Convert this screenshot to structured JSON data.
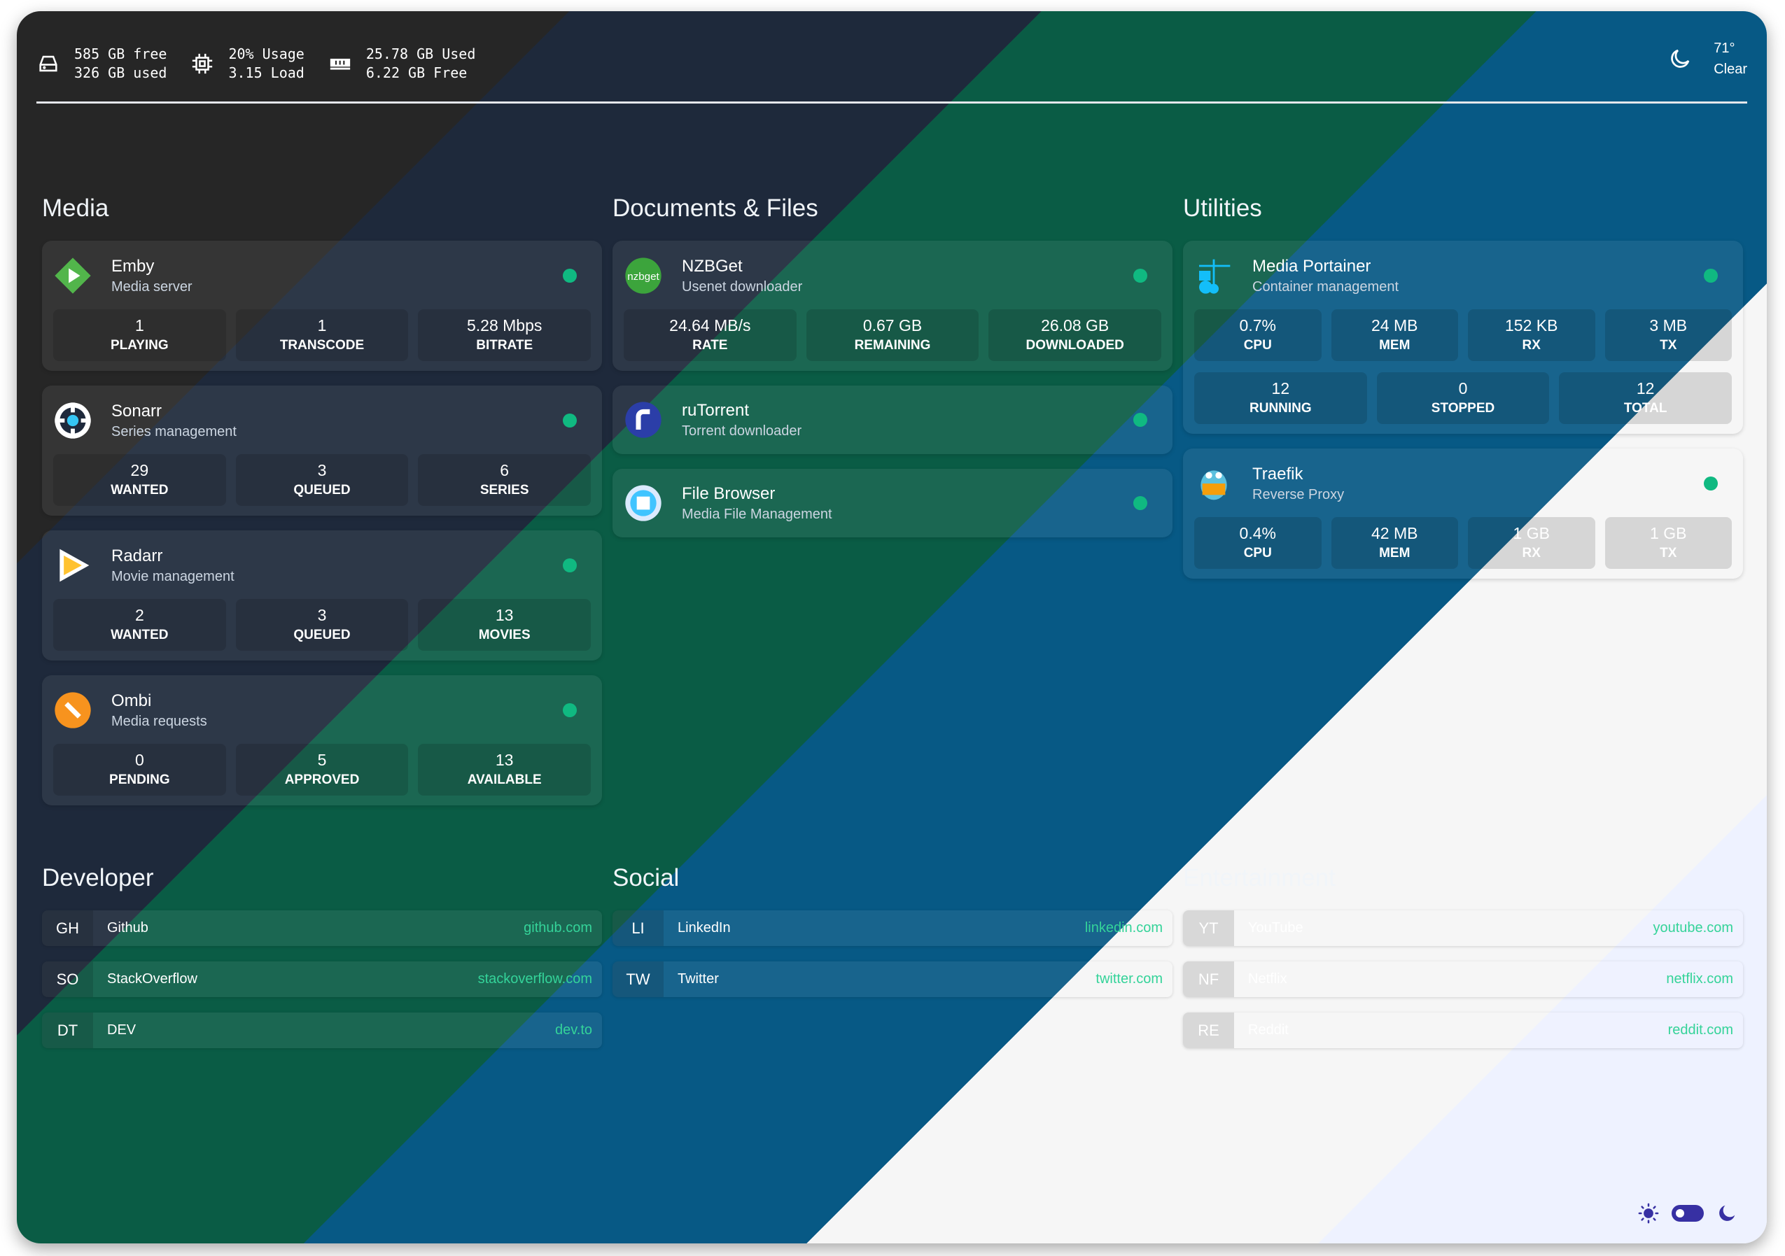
{
  "widgets": {
    "disk": {
      "icon": "drive-icon",
      "line1": "585 GB free",
      "line2": "326 GB used"
    },
    "cpu": {
      "icon": "cpu-icon",
      "line1": "20% Usage",
      "line2": "3.15 Load"
    },
    "memory": {
      "icon": "memory-icon",
      "line1": "25.78 GB Used",
      "line2": "6.22 GB Free"
    },
    "weather": {
      "icon": "moon-icon",
      "temp": "71°",
      "condition": "Clear"
    }
  },
  "services": [
    {
      "heading": "Media",
      "cards": [
        {
          "name": "Emby",
          "desc": "Media server",
          "icon": "emby-icon",
          "stats": [
            [
              "1",
              "PLAYING"
            ],
            [
              "1",
              "TRANSCODE"
            ],
            [
              "5.28 Mbps",
              "BITRATE"
            ]
          ]
        },
        {
          "name": "Sonarr",
          "desc": "Series management",
          "icon": "sonarr-icon",
          "stats": [
            [
              "29",
              "WANTED"
            ],
            [
              "3",
              "QUEUED"
            ],
            [
              "6",
              "SERIES"
            ]
          ]
        },
        {
          "name": "Radarr",
          "desc": "Movie management",
          "icon": "radarr-icon",
          "stats": [
            [
              "2",
              "WANTED"
            ],
            [
              "3",
              "QUEUED"
            ],
            [
              "13",
              "MOVIES"
            ]
          ]
        },
        {
          "name": "Ombi",
          "desc": "Media requests",
          "icon": "ombi-icon",
          "stats": [
            [
              "0",
              "PENDING"
            ],
            [
              "5",
              "APPROVED"
            ],
            [
              "13",
              "AVAILABLE"
            ]
          ]
        }
      ]
    },
    {
      "heading": "Documents & Files",
      "cards": [
        {
          "name": "NZBGet",
          "desc": "Usenet downloader",
          "icon": "nzbget-icon",
          "icon_text": "nzbget",
          "stats": [
            [
              "24.64 MB/s",
              "RATE"
            ],
            [
              "0.67 GB",
              "REMAINING"
            ],
            [
              "26.08 GB",
              "DOWNLOADED"
            ]
          ]
        },
        {
          "name": "ruTorrent",
          "desc": "Torrent downloader",
          "icon": "rutorrent-icon",
          "stats": []
        },
        {
          "name": "File Browser",
          "desc": "Media File Management",
          "icon": "filebrowser-icon",
          "stats": []
        }
      ]
    },
    {
      "heading": "Utilities",
      "cards": [
        {
          "name": "Media Portainer",
          "desc": "Container management",
          "icon": "portainer-icon",
          "stats": [
            [
              "0.7%",
              "CPU"
            ],
            [
              "24 MB",
              "MEM"
            ],
            [
              "152 KB",
              "RX"
            ],
            [
              "3 MB",
              "TX"
            ]
          ],
          "stats2": [
            [
              "12",
              "RUNNING"
            ],
            [
              "0",
              "STOPPED"
            ],
            [
              "12",
              "TOTAL"
            ]
          ]
        },
        {
          "name": "Traefik",
          "desc": "Reverse Proxy",
          "icon": "traefik-icon",
          "stats": [
            [
              "0.4%",
              "CPU"
            ],
            [
              "42 MB",
              "MEM"
            ],
            [
              "1 GB",
              "RX"
            ],
            [
              "1 GB",
              "TX"
            ]
          ]
        }
      ]
    }
  ],
  "bookmarks": [
    {
      "heading": "Developer",
      "items": [
        {
          "abbr": "GH",
          "name": "Github",
          "url": "github.com"
        },
        {
          "abbr": "SO",
          "name": "StackOverflow",
          "url": "stackoverflow.com"
        },
        {
          "abbr": "DT",
          "name": "DEV",
          "url": "dev.to"
        }
      ]
    },
    {
      "heading": "Social",
      "items": [
        {
          "abbr": "LI",
          "name": "LinkedIn",
          "url": "linkedin.com"
        },
        {
          "abbr": "TW",
          "name": "Twitter",
          "url": "twitter.com"
        }
      ]
    },
    {
      "heading": "Entertainment",
      "items": [
        {
          "abbr": "YT",
          "name": "YouTube",
          "url": "youtube.com"
        },
        {
          "abbr": "NF",
          "name": "Netflix",
          "url": "netflix.com"
        },
        {
          "abbr": "RE",
          "name": "Reddit",
          "url": "reddit.com"
        }
      ]
    }
  ],
  "colors": {
    "status_online": "#10b981",
    "accent": "#34d399",
    "theme_toggle": "#3730a3"
  },
  "theme_toggle": {
    "state": "light"
  }
}
